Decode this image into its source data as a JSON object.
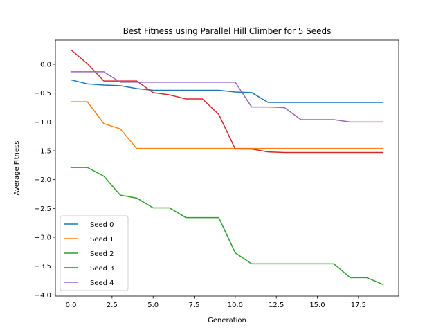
{
  "chart_data": {
    "type": "line",
    "title": "Best Fitness using Parallel Hill Climber for 5 Seeds",
    "xlabel": "Generation",
    "ylabel": "Average Fitness",
    "xlim": [
      -0.95,
      19.95
    ],
    "ylim": [
      -4.02,
      0.42
    ],
    "xticks": [
      0,
      2.5,
      5,
      7.5,
      10,
      12.5,
      15,
      17.5
    ],
    "xtick_labels": [
      "0.0",
      "2.5",
      "5.0",
      "7.5",
      "10.0",
      "12.5",
      "15.0",
      "17.5"
    ],
    "yticks": [
      0,
      -0.5,
      -1,
      -1.5,
      -2,
      -2.5,
      -3,
      -3.5,
      -4
    ],
    "ytick_labels": [
      "0.0",
      "−0.5",
      "−1.0",
      "−1.5",
      "−2.0",
      "−2.5",
      "−3.0",
      "−3.5",
      "−4.0"
    ],
    "grid": false,
    "legend_position": "lower-left",
    "x": [
      0,
      1,
      2,
      3,
      4,
      5,
      6,
      7,
      8,
      9,
      10,
      11,
      12,
      13,
      14,
      15,
      16,
      17,
      18,
      19
    ],
    "series": [
      {
        "name": "Seed 0",
        "color": "#1f77b4",
        "values": [
          -0.27,
          -0.34,
          -0.36,
          -0.37,
          -0.42,
          -0.45,
          -0.45,
          -0.45,
          -0.45,
          -0.45,
          -0.48,
          -0.49,
          -0.66,
          -0.66,
          -0.66,
          -0.66,
          -0.66,
          -0.66,
          -0.66,
          -0.66
        ]
      },
      {
        "name": "Seed 1",
        "color": "#ff7f0e",
        "values": [
          -0.65,
          -0.65,
          -1.03,
          -1.12,
          -1.46,
          -1.46,
          -1.46,
          -1.46,
          -1.46,
          -1.46,
          -1.46,
          -1.46,
          -1.46,
          -1.46,
          -1.46,
          -1.46,
          -1.46,
          -1.46,
          -1.46,
          -1.46
        ]
      },
      {
        "name": "Seed 2",
        "color": "#2ca02c",
        "values": [
          -1.79,
          -1.79,
          -1.94,
          -2.27,
          -2.32,
          -2.49,
          -2.49,
          -2.66,
          -2.66,
          -2.66,
          -3.27,
          -3.46,
          -3.46,
          -3.46,
          -3.46,
          -3.46,
          -3.46,
          -3.7,
          -3.7,
          -3.82
        ]
      },
      {
        "name": "Seed 3",
        "color": "#d62728",
        "values": [
          0.25,
          0.01,
          -0.29,
          -0.29,
          -0.29,
          -0.49,
          -0.53,
          -0.6,
          -0.6,
          -0.87,
          -1.47,
          -1.47,
          -1.52,
          -1.53,
          -1.53,
          -1.53,
          -1.53,
          -1.53,
          -1.53,
          -1.53
        ]
      },
      {
        "name": "Seed 4",
        "color": "#9467bd",
        "values": [
          -0.13,
          -0.13,
          -0.13,
          -0.31,
          -0.31,
          -0.31,
          -0.31,
          -0.31,
          -0.31,
          -0.31,
          -0.31,
          -0.74,
          -0.74,
          -0.75,
          -0.96,
          -0.96,
          -0.96,
          -1.0,
          -1.0,
          -1.0
        ]
      }
    ]
  }
}
